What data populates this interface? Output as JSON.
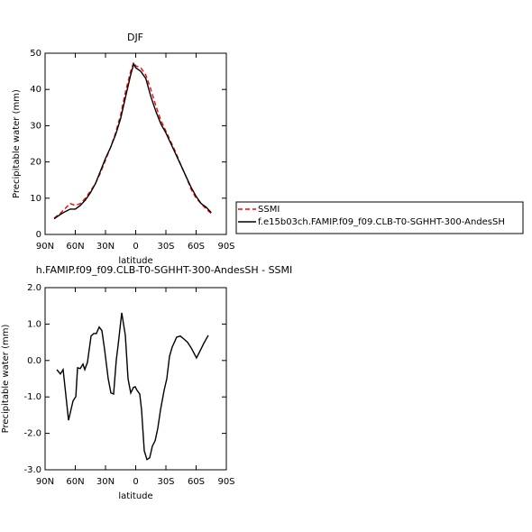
{
  "chart_data": [
    {
      "type": "line",
      "title": "DJF",
      "xlabel": "latitude",
      "ylabel": "Precipitable water (mm)",
      "x": [
        81,
        75,
        70,
        65,
        60,
        55,
        50,
        45,
        40,
        35,
        30,
        25,
        20,
        15,
        10,
        5,
        2,
        0,
        -5,
        -10,
        -15,
        -20,
        -25,
        -30,
        -35,
        -40,
        -45,
        -50,
        -55,
        -60,
        -65,
        -70,
        -75
      ],
      "series": [
        {
          "name": "SSMI",
          "color": "#ff0000",
          "style": "dashed",
          "values": [
            4.5,
            5.8,
            7.2,
            8.5,
            8,
            8.5,
            10,
            12,
            14,
            17,
            20.5,
            24,
            28,
            33,
            39.5,
            45,
            47.5,
            46.5,
            46,
            44,
            40,
            35.5,
            31.5,
            28.5,
            25.5,
            22.5,
            19,
            16,
            12.5,
            10,
            8.5,
            7,
            5.8
          ]
        },
        {
          "name": "f.e15b03ch.FAMIP.f09_f09.CLB-T0-SGHHT-300-AndesSH",
          "color": "#000000",
          "style": "solid",
          "values": [
            4.3,
            5.5,
            6.3,
            7,
            7,
            8,
            9.5,
            11.5,
            14,
            17.5,
            21,
            24,
            27.5,
            32,
            38,
            44,
            47,
            46,
            45,
            43,
            38,
            34,
            30.5,
            28,
            25,
            22,
            19,
            16,
            13,
            10.5,
            8.5,
            7.5,
            6
          ]
        }
      ],
      "xlim": [
        90,
        -90
      ],
      "ylim": [
        0,
        50
      ],
      "xticks": [
        {
          "value": 90,
          "label": "90N"
        },
        {
          "value": 60,
          "label": "60N"
        },
        {
          "value": 30,
          "label": "30N"
        },
        0,
        {
          "value": -30,
          "label": "30S"
        },
        {
          "value": -60,
          "label": "60S"
        },
        {
          "value": -90,
          "label": "90S"
        }
      ],
      "yticks": [
        0,
        10,
        20,
        30,
        40,
        50
      ],
      "legend": "right"
    },
    {
      "type": "line",
      "title": "h.FAMIP.f09_f09.CLB-T0-SGHHT-300-AndesSH - SSMI",
      "xlabel": "latitude",
      "ylabel": "Precipitable water (mm)",
      "x": [
        78.4,
        74.8,
        72.1,
        66.7,
        62.2,
        59.5,
        57.8,
        55.1,
        52.4,
        50.6,
        47.9,
        44.3,
        41.7,
        39,
        36.3,
        33.6,
        30.9,
        27.3,
        24.6,
        21.9,
        19.3,
        17.5,
        13.9,
        10.3,
        7.6,
        4.9,
        2.2,
        0.5,
        -1.3,
        -4,
        -5.8,
        -8.5,
        -11.2,
        -13.9,
        -16.6,
        -19.3,
        -21.9,
        -24.6,
        -28.2,
        -30.9,
        -33.6,
        -36.3,
        -40.7,
        -44.3,
        -47.9,
        -51.5,
        -55.1,
        -60.4,
        -64,
        -67.6,
        -72.1
      ],
      "series": [
        {
          "color": "#000000",
          "style": "solid",
          "values": [
            -0.25,
            -0.37,
            -0.25,
            -1.64,
            -1.11,
            -0.99,
            -0.2,
            -0.22,
            -0.1,
            -0.25,
            -0.05,
            0.67,
            0.74,
            0.74,
            0.92,
            0.82,
            0.3,
            -0.5,
            -0.89,
            -0.92,
            0,
            0.42,
            1.31,
            0.69,
            -0.5,
            -0.89,
            -0.74,
            -0.72,
            -0.82,
            -0.92,
            -1.36,
            -2.48,
            -2.72,
            -2.67,
            -2.35,
            -2.2,
            -1.86,
            -1.36,
            -0.82,
            -0.5,
            0.12,
            0.37,
            0.64,
            0.67,
            0.59,
            0.5,
            0.35,
            0.07,
            0.27,
            0.47,
            0.69
          ]
        }
      ],
      "xlim": [
        90,
        -90
      ],
      "ylim": [
        -3,
        2
      ],
      "xticks": [
        {
          "value": 90,
          "label": "90N"
        },
        {
          "value": 60,
          "label": "60N"
        },
        {
          "value": 30,
          "label": "30N"
        },
        0,
        {
          "value": -30,
          "label": "30S"
        },
        {
          "value": -60,
          "label": "60S"
        },
        {
          "value": -90,
          "label": "90S"
        }
      ],
      "yticks": [
        {
          "value": 2,
          "label": "2.0"
        },
        {
          "value": 1,
          "label": "1.0"
        },
        {
          "value": 0,
          "label": "0.0"
        },
        {
          "value": -1,
          "label": "-1.0"
        },
        {
          "value": -2,
          "label": "-2.0"
        },
        {
          "value": -3,
          "label": "-3.0"
        }
      ]
    }
  ]
}
